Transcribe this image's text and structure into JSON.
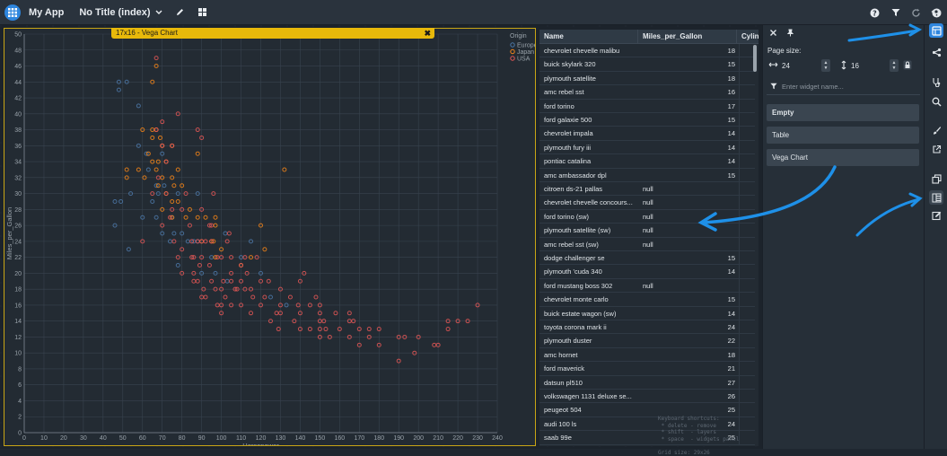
{
  "app": {
    "title": "My App",
    "page_title": "No Title (index)"
  },
  "chart_widget": {
    "tab_label": "17x16 - Vega Chart",
    "close": "✖"
  },
  "chart_data": {
    "type": "scatter",
    "title": "",
    "xlabel": "Horsepower",
    "ylabel": "Miles_per_Gallon",
    "xlim": [
      0,
      240
    ],
    "ylim": [
      0,
      50
    ],
    "xticks": [
      0,
      10,
      20,
      30,
      40,
      50,
      60,
      70,
      80,
      90,
      100,
      110,
      120,
      130,
      140,
      150,
      160,
      170,
      180,
      190,
      200,
      210,
      220,
      230,
      240
    ],
    "yticks": [
      0,
      2,
      4,
      6,
      8,
      10,
      12,
      14,
      16,
      18,
      20,
      22,
      24,
      26,
      28,
      30,
      32,
      34,
      36,
      38,
      40,
      42,
      44,
      46,
      48,
      50
    ],
    "legend": {
      "title": "Origin",
      "placement": "top-right"
    },
    "series": [
      {
        "name": "Europe",
        "color": "#4c78a8",
        "points": [
          [
            46,
            26
          ],
          [
            48,
            43
          ],
          [
            48,
            44
          ],
          [
            52,
            44
          ],
          [
            46,
            29
          ],
          [
            49,
            29
          ],
          [
            53,
            23
          ],
          [
            58,
            36
          ],
          [
            60,
            27
          ],
          [
            63,
            33
          ],
          [
            65,
            29
          ],
          [
            67,
            31
          ],
          [
            67,
            27
          ],
          [
            68,
            30
          ],
          [
            70,
            25
          ],
          [
            71,
            31
          ],
          [
            74,
            24
          ],
          [
            75,
            27
          ],
          [
            76,
            25
          ],
          [
            78,
            30
          ],
          [
            78,
            21
          ],
          [
            80,
            25
          ],
          [
            83,
            24
          ],
          [
            86,
            24
          ],
          [
            88,
            24
          ],
          [
            90,
            20
          ],
          [
            95,
            22
          ],
          [
            97,
            20
          ],
          [
            102,
            25
          ],
          [
            103,
            19
          ],
          [
            110,
            22
          ],
          [
            115,
            24
          ],
          [
            120,
            20
          ],
          [
            125,
            17
          ],
          [
            133,
            16
          ],
          [
            58,
            41
          ],
          [
            88,
            30
          ],
          [
            70,
            35
          ],
          [
            62,
            35
          ],
          [
            54,
            30
          ]
        ]
      },
      {
        "name": "Japan",
        "color": "#f58518",
        "points": [
          [
            52,
            32
          ],
          [
            52,
            33
          ],
          [
            60,
            38
          ],
          [
            61,
            32
          ],
          [
            63,
            35
          ],
          [
            65,
            38
          ],
          [
            65,
            34
          ],
          [
            65,
            37
          ],
          [
            67,
            33
          ],
          [
            67,
            46
          ],
          [
            67,
            38
          ],
          [
            68,
            31
          ],
          [
            68,
            34
          ],
          [
            69,
            37
          ],
          [
            70,
            32
          ],
          [
            70,
            36
          ],
          [
            70,
            28
          ],
          [
            72,
            34
          ],
          [
            72,
            30
          ],
          [
            75,
            29
          ],
          [
            75,
            32
          ],
          [
            75,
            27
          ],
          [
            75,
            36
          ],
          [
            76,
            31
          ],
          [
            78,
            29
          ],
          [
            78,
            33
          ],
          [
            80,
            31
          ],
          [
            82,
            27
          ],
          [
            84,
            28
          ],
          [
            88,
            27
          ],
          [
            90,
            24
          ],
          [
            92,
            27
          ],
          [
            95,
            24
          ],
          [
            96,
            24
          ],
          [
            97,
            27
          ],
          [
            97,
            26
          ],
          [
            97,
            22
          ],
          [
            100,
            23
          ],
          [
            110,
            21
          ],
          [
            115,
            22
          ],
          [
            122,
            23
          ],
          [
            132,
            33
          ],
          [
            120,
            26
          ],
          [
            88,
            35
          ],
          [
            65,
            44
          ],
          [
            58,
            33
          ]
        ]
      },
      {
        "name": "USA",
        "color": "#e45756",
        "points": [
          [
            60,
            24
          ],
          [
            65,
            30
          ],
          [
            67,
            38
          ],
          [
            68,
            32
          ],
          [
            70,
            26
          ],
          [
            70,
            36
          ],
          [
            72,
            30
          ],
          [
            75,
            28
          ],
          [
            75,
            36
          ],
          [
            78,
            22
          ],
          [
            80,
            20
          ],
          [
            80,
            28
          ],
          [
            84,
            26
          ],
          [
            85,
            22
          ],
          [
            86,
            20
          ],
          [
            88,
            24
          ],
          [
            88,
            19
          ],
          [
            89,
            21
          ],
          [
            90,
            22
          ],
          [
            90,
            24
          ],
          [
            90,
            28
          ],
          [
            91,
            18
          ],
          [
            92,
            17
          ],
          [
            94,
            21
          ],
          [
            95,
            24
          ],
          [
            95,
            19
          ],
          [
            97,
            18
          ],
          [
            98,
            22
          ],
          [
            98,
            16
          ],
          [
            100,
            22
          ],
          [
            100,
            18
          ],
          [
            100,
            15
          ],
          [
            101,
            19
          ],
          [
            102,
            17
          ],
          [
            103,
            24
          ],
          [
            105,
            19
          ],
          [
            105,
            16
          ],
          [
            105,
            22
          ],
          [
            107,
            18
          ],
          [
            108,
            18
          ],
          [
            110,
            21
          ],
          [
            110,
            16
          ],
          [
            110,
            19
          ],
          [
            112,
            22
          ],
          [
            113,
            20
          ],
          [
            115,
            18
          ],
          [
            115,
            15
          ],
          [
            116,
            17
          ],
          [
            120,
            19
          ],
          [
            120,
            16
          ],
          [
            122,
            17
          ],
          [
            125,
            14
          ],
          [
            129,
            13
          ],
          [
            130,
            15
          ],
          [
            130,
            18
          ],
          [
            130,
            16
          ],
          [
            135,
            17
          ],
          [
            137,
            14
          ],
          [
            139,
            16
          ],
          [
            140,
            13
          ],
          [
            140,
            15
          ],
          [
            140,
            19
          ],
          [
            142,
            20
          ],
          [
            145,
            16
          ],
          [
            145,
            13
          ],
          [
            148,
            17
          ],
          [
            150,
            14
          ],
          [
            150,
            15
          ],
          [
            150,
            16
          ],
          [
            150,
            13
          ],
          [
            150,
            12
          ],
          [
            152,
            14
          ],
          [
            153,
            13
          ],
          [
            155,
            12
          ],
          [
            158,
            15
          ],
          [
            160,
            13
          ],
          [
            165,
            14
          ],
          [
            165,
            12
          ],
          [
            165,
            15
          ],
          [
            167,
            14
          ],
          [
            170,
            13
          ],
          [
            170,
            11
          ],
          [
            175,
            13
          ],
          [
            175,
            12
          ],
          [
            180,
            11
          ],
          [
            180,
            13
          ],
          [
            190,
            12
          ],
          [
            190,
            9
          ],
          [
            193,
            12
          ],
          [
            198,
            10
          ],
          [
            200,
            12
          ],
          [
            208,
            11
          ],
          [
            210,
            11
          ],
          [
            215,
            13
          ],
          [
            215,
            14
          ],
          [
            220,
            14
          ],
          [
            225,
            14
          ],
          [
            230,
            16
          ],
          [
            88,
            38
          ],
          [
            90,
            37
          ],
          [
            67,
            47
          ],
          [
            70,
            39
          ],
          [
            72,
            34
          ],
          [
            78,
            40
          ],
          [
            82,
            30
          ],
          [
            86,
            22
          ],
          [
            94,
            26
          ],
          [
            80,
            23
          ],
          [
            76,
            24
          ],
          [
            74,
            27
          ],
          [
            95,
            26
          ],
          [
            96,
            30
          ],
          [
            104,
            25
          ],
          [
            112,
            18
          ],
          [
            118,
            22
          ],
          [
            124,
            19
          ],
          [
            128,
            15
          ],
          [
            85,
            24
          ],
          [
            92,
            24
          ],
          [
            86,
            19
          ],
          [
            90,
            17
          ],
          [
            100,
            16
          ],
          [
            105,
            20
          ]
        ]
      }
    ]
  },
  "table": {
    "columns": [
      "Name",
      "Miles_per_Gallon",
      "Cylin"
    ],
    "rows": [
      [
        "chevrolet chevelle malibu",
        "18"
      ],
      [
        "buick skylark 320",
        "15"
      ],
      [
        "plymouth satellite",
        "18"
      ],
      [
        "amc rebel sst",
        "16"
      ],
      [
        "ford torino",
        "17"
      ],
      [
        "ford galaxie 500",
        "15"
      ],
      [
        "chevrolet impala",
        "14"
      ],
      [
        "plymouth fury iii",
        "14"
      ],
      [
        "pontiac catalina",
        "14"
      ],
      [
        "amc ambassador dpl",
        "15"
      ],
      [
        "citroen ds-21 pallas",
        "null"
      ],
      [
        "chevrolet chevelle concours...",
        "null"
      ],
      [
        "ford torino (sw)",
        "null"
      ],
      [
        "plymouth satellite (sw)",
        "null"
      ],
      [
        "amc rebel sst (sw)",
        "null"
      ],
      [
        "dodge challenger se",
        "15"
      ],
      [
        "plymouth 'cuda 340",
        "14"
      ],
      [
        "ford mustang boss 302",
        "null"
      ],
      [
        "chevrolet monte carlo",
        "15"
      ],
      [
        "buick estate wagon (sw)",
        "14"
      ],
      [
        "toyota corona mark ii",
        "24"
      ],
      [
        "plymouth duster",
        "22"
      ],
      [
        "amc hornet",
        "18"
      ],
      [
        "ford maverick",
        "21"
      ],
      [
        "datsun pl510",
        "27"
      ],
      [
        "volkswagen 1131 deluxe se...",
        "26"
      ],
      [
        "peugeot 504",
        "25"
      ],
      [
        "audi 100 ls",
        "24"
      ],
      [
        "saab 99e",
        "25"
      ]
    ]
  },
  "hint_text": "Keyboard shortcuts:\n * delete - remove\n * shift  - layers\n * space  - widgets panel\n\nGrid size: 29x26",
  "side_panel": {
    "page_size_label": "Page size:",
    "width_value": "24",
    "height_value": "16",
    "filter_placeholder": "Enter widget name...",
    "widgets": [
      "Empty",
      "Table",
      "Vega Chart"
    ]
  },
  "colors": {
    "accent": "#2e86de",
    "highlight": "#e8b90a"
  },
  "icons": [
    "grid-logo-icon",
    "chevron-down-icon",
    "pencil-icon",
    "layout-icon",
    "help-icon",
    "filter-icon",
    "refresh-icon",
    "info-icon",
    "close-icon",
    "pin-icon",
    "width-icon",
    "height-icon",
    "lock-icon",
    "eye-icon",
    "widgets-icon",
    "share-icon",
    "stethoscope-icon",
    "search-icon",
    "brush-icon",
    "external-icon",
    "copy-icon",
    "table-icon",
    "edit-icon"
  ]
}
